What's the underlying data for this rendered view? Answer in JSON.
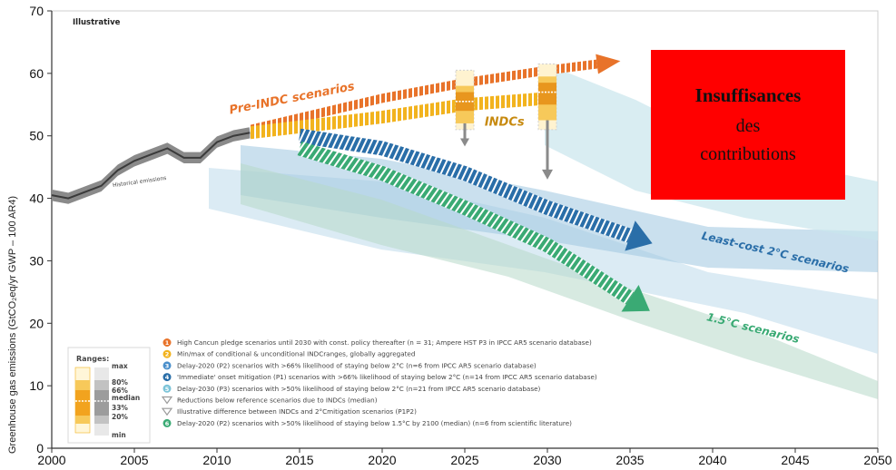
{
  "chart_data": {
    "type": "line",
    "ylabel": "Greenhouse gas emissions (GtCO₂eq/yr GWP – 100 AR4)",
    "xlim": [
      2000,
      2050
    ],
    "ylim": [
      0,
      70
    ],
    "xticks": [
      2000,
      2005,
      2010,
      2015,
      2020,
      2025,
      2030,
      2035,
      2040,
      2045,
      2050
    ],
    "yticks": [
      0,
      10,
      20,
      30,
      40,
      50,
      60,
      70
    ],
    "note": "Illustrative",
    "historical_label": "Historical emissions",
    "historical": {
      "x": [
        2000,
        2001,
        2002,
        2003,
        2004,
        2005,
        2006,
        2007,
        2008,
        2009,
        2010,
        2011,
        2012
      ],
      "y": [
        40.5,
        40.0,
        41.0,
        42.0,
        44.5,
        46.0,
        47.0,
        48.0,
        46.5,
        46.5,
        49.0,
        50.0,
        50.5
      ]
    },
    "series": [
      {
        "name": "Pre-INDC scenarios",
        "color": "#e8732a",
        "x": [
          2012,
          2020,
          2025,
          2030,
          2033
        ],
        "y": [
          51,
          56,
          58.5,
          60.5,
          61.5
        ]
      },
      {
        "name": "INDCs",
        "color": "#f2b31e",
        "x": [
          2012,
          2020,
          2025,
          2030
        ],
        "y": [
          50.5,
          53,
          55,
          56
        ]
      },
      {
        "name": "Least-cost 2°C scenarios",
        "color": "#2a6ea8",
        "x": [
          2015,
          2020,
          2025,
          2030,
          2035
        ],
        "y": [
          50,
          48,
          44,
          38.5,
          34
        ]
      },
      {
        "name": "1.5°C scenarios",
        "color": "#3aaa74",
        "x": [
          2015,
          2020,
          2025,
          2030,
          2035
        ],
        "y": [
          48,
          44,
          38.5,
          32.5,
          24
        ]
      }
    ],
    "indc_boxes": [
      {
        "year": 2025,
        "p20": 52,
        "p33": 54,
        "median": 55.5,
        "p66": 57,
        "p80": 58,
        "min": 51,
        "max": 60.5
      },
      {
        "year": 2030,
        "p20": 52.5,
        "p33": 55,
        "median": 57,
        "p66": 58.5,
        "p80": 59.5,
        "min": 51,
        "max": 61.5
      }
    ],
    "ranges_legend": {
      "title": "Ranges:",
      "labels": [
        "max",
        "80%",
        "66%",
        "median",
        "33%",
        "20%",
        "min"
      ]
    },
    "legend": [
      {
        "marker": "1",
        "color": "#e8732a",
        "text": "High Cancun pledge scenarios until 2030 with const. policy thereafter (n = 31; Ampere HST P3 in IPCC AR5 scenario database)"
      },
      {
        "marker": "2",
        "color": "#f2b31e",
        "text": "Min/max of conditional & unconditional INDCranges, globally aggregated"
      },
      {
        "marker": "3",
        "color": "#4a8fcb",
        "text": "Delay-2020 (P2) scenarios with >66% likelihood of staying below 2°C (n=6 from IPCC AR5 scenario database)"
      },
      {
        "marker": "4",
        "color": "#2a6ea8",
        "text": "'Immediate' onset mitigation (P1) scenarios with >66% likelihood of staying below 2°C (n=14 from IPCC AR5 scenario database)"
      },
      {
        "marker": "5",
        "color": "#7cc4d8",
        "text": "Delay-2030 (P3) scenarios with >50% likelihood of staying below 2°C (n=21 from IPCC AR5 scenario database)"
      },
      {
        "marker": "",
        "color": "#9a9a9a",
        "text": "Reductions below reference scenarios due to INDCs (median)"
      },
      {
        "marker": "",
        "color": "#9a9a9a",
        "text": "Illustrative difference between INDCs and 2°Cmitigation scenarios (P1P2)"
      },
      {
        "marker": "6",
        "color": "#3aaa74",
        "text": "Delay-2020 (P2) scenarios with >50% likelihood of staying below 1.5°C by 2100 (median) (n=6 from scientific literature)"
      }
    ]
  },
  "callout": {
    "line1": "Insuffisances",
    "line2": "des",
    "line3": "contributions",
    "bg_color": "#ff0000"
  }
}
